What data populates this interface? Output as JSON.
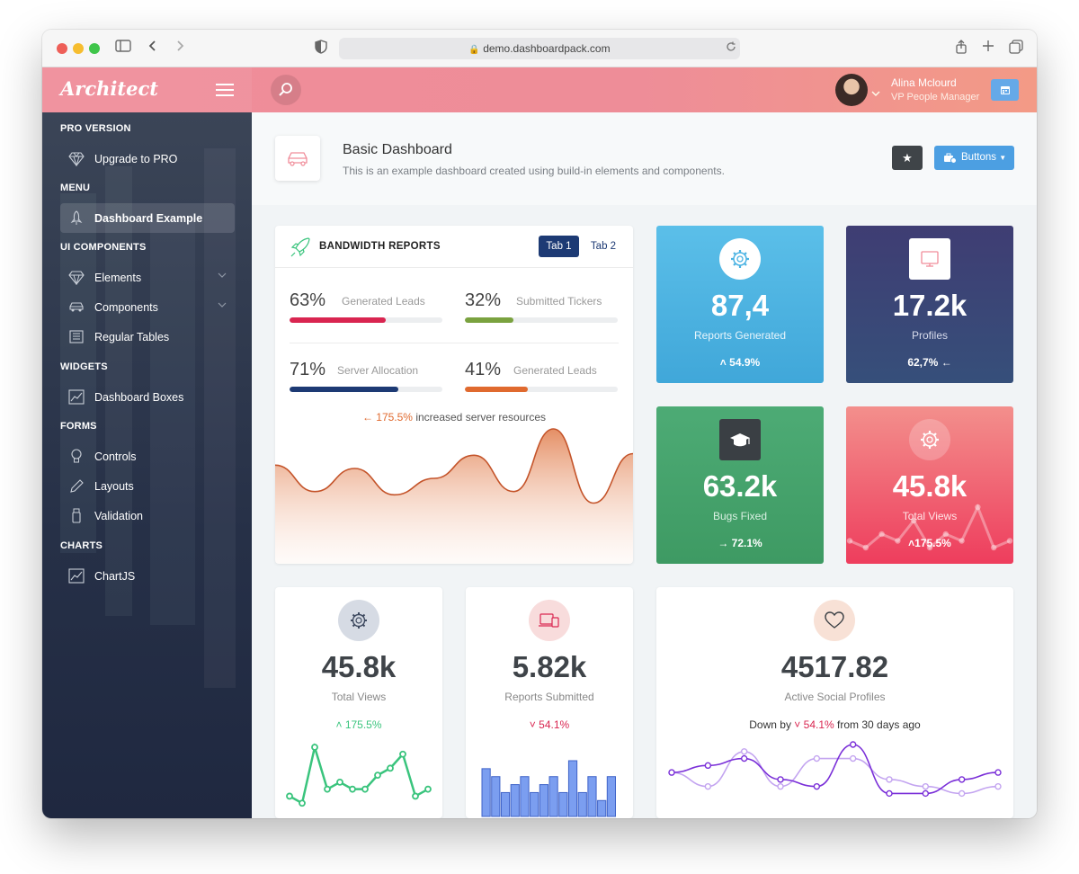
{
  "browser": {
    "url": "demo.dashboardpack.com"
  },
  "header": {
    "logo": "Architect",
    "user_name": "Alina Mclourd",
    "user_role": "VP People Manager"
  },
  "sidebar": {
    "sections": [
      {
        "heading": "PRO VERSION",
        "items": [
          {
            "label": "Upgrade to PRO",
            "icon": "diamond-icon"
          }
        ]
      },
      {
        "heading": "MENU",
        "items": [
          {
            "label": "Dashboard Example",
            "icon": "rocket-icon",
            "active": true
          }
        ]
      },
      {
        "heading": "UI COMPONENTS",
        "items": [
          {
            "label": "Elements",
            "icon": "diamond-icon"
          },
          {
            "label": "Components",
            "icon": "car-icon"
          },
          {
            "label": "Regular Tables",
            "icon": "table-icon"
          }
        ]
      },
      {
        "heading": "WIDGETS",
        "items": [
          {
            "label": "Dashboard Boxes",
            "icon": "chart-icon"
          }
        ]
      },
      {
        "heading": "FORMS",
        "items": [
          {
            "label": "Controls",
            "icon": "lightbulb-icon"
          },
          {
            "label": "Layouts",
            "icon": "pencil-icon"
          },
          {
            "label": "Validation",
            "icon": "usb-icon"
          }
        ]
      },
      {
        "heading": "CHARTS",
        "items": [
          {
            "label": "ChartJS",
            "icon": "chart-icon"
          }
        ]
      }
    ]
  },
  "page": {
    "title": "Basic Dashboard",
    "subtitle": "This is an example dashboard created using build-in elements and components.",
    "buttons_label": "Buttons"
  },
  "bandwidth": {
    "title": "BANDWIDTH REPORTS",
    "tab1": "Tab 1",
    "tab2": "Tab 2",
    "metrics": [
      {
        "percent": "63%",
        "label": "Generated Leads",
        "fill": 63,
        "color": "#d92550"
      },
      {
        "percent": "32%",
        "label": "Submitted Tickers",
        "fill": 32,
        "color": "#7aa23f"
      },
      {
        "percent": "71%",
        "label": "Server Allocation",
        "fill": 71,
        "color": "#1d3a74"
      },
      {
        "percent": "41%",
        "label": "Generated Leads",
        "fill": 41,
        "color": "#e06a2f"
      }
    ],
    "note_value": "175.5%",
    "note_text": "increased server resources",
    "chart_data": {
      "type": "area",
      "values": [
        38,
        22,
        36,
        20,
        30,
        44,
        22,
        60,
        15,
        45
      ]
    }
  },
  "tiles": [
    {
      "value": "87,4",
      "label": "Reports Generated",
      "change": "54.9%",
      "icon": "gear-icon"
    },
    {
      "value": "17.2k",
      "label": "Profiles",
      "change": "62,7%",
      "icon": "monitor-icon"
    },
    {
      "value": "63.2k",
      "label": "Bugs Fixed",
      "change": "72.1%",
      "icon": "graduation-cap-icon"
    },
    {
      "value": "45.8k",
      "label": "Total Views",
      "change": "175.5%",
      "icon": "gear-icon",
      "chart_data": {
        "type": "line",
        "values": [
          3,
          2,
          4,
          3,
          6,
          2,
          4,
          3,
          8,
          2,
          3
        ]
      }
    }
  ],
  "bottom_cards": [
    {
      "value": "45.8k",
      "label": "Total Views",
      "change": "175.5%",
      "icon": "gear-icon",
      "chart_data": {
        "type": "line",
        "values": [
          2,
          1,
          9,
          3,
          4,
          3,
          3,
          5,
          6,
          8,
          2,
          3
        ]
      }
    },
    {
      "value": "5.82k",
      "label": "Reports Submitted",
      "change": "54.1%",
      "icon": "devices-icon",
      "chart_data": {
        "type": "bar",
        "values": [
          6,
          5,
          3,
          4,
          5,
          3,
          4,
          5,
          3,
          7,
          3,
          5,
          2,
          5
        ]
      }
    },
    {
      "value": "4517.82",
      "label": "Active Social Profiles",
      "prefix": "Down by",
      "change": "54.1%",
      "suffix": "from 30 days ago",
      "icon": "heart-icon",
      "chart_data": {
        "type": "line",
        "series": [
          {
            "values": [
              5,
              6,
              7,
              4,
              3,
              9,
              2,
              2,
              4,
              5
            ]
          },
          {
            "values": [
              5,
              3,
              8,
              3,
              7,
              7,
              4,
              3,
              2,
              3
            ]
          }
        ]
      }
    }
  ]
}
